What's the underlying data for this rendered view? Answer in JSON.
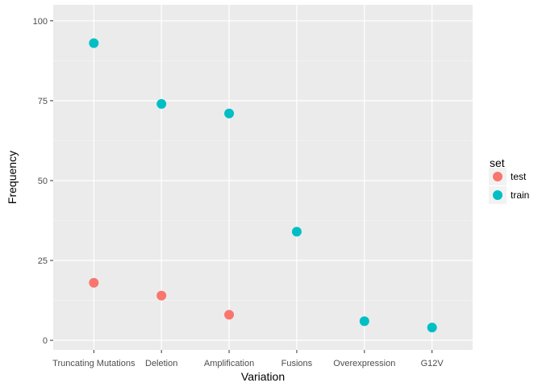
{
  "chart_data": {
    "type": "scatter",
    "title": "",
    "xlabel": "Variation",
    "ylabel": "Frequency",
    "categories": [
      "Truncating Mutations",
      "Deletion",
      "Amplification",
      "Fusions",
      "Overexpression",
      "G12V"
    ],
    "ylim": [
      -3,
      105
    ],
    "yticks": [
      0,
      25,
      50,
      75,
      100
    ],
    "grid": true,
    "legend": {
      "title": "set",
      "position": "right",
      "entries": [
        "test",
        "train"
      ]
    },
    "series": [
      {
        "name": "test",
        "color": "#F8766D",
        "points": [
          {
            "x": "Truncating Mutations",
            "y": 18
          },
          {
            "x": "Deletion",
            "y": 14
          },
          {
            "x": "Amplification",
            "y": 8
          }
        ]
      },
      {
        "name": "train",
        "color": "#00BFC4",
        "points": [
          {
            "x": "Truncating Mutations",
            "y": 93
          },
          {
            "x": "Deletion",
            "y": 74
          },
          {
            "x": "Amplification",
            "y": 71
          },
          {
            "x": "Fusions",
            "y": 34
          },
          {
            "x": "Overexpression",
            "y": 6
          },
          {
            "x": "G12V",
            "y": 4
          }
        ]
      }
    ]
  }
}
